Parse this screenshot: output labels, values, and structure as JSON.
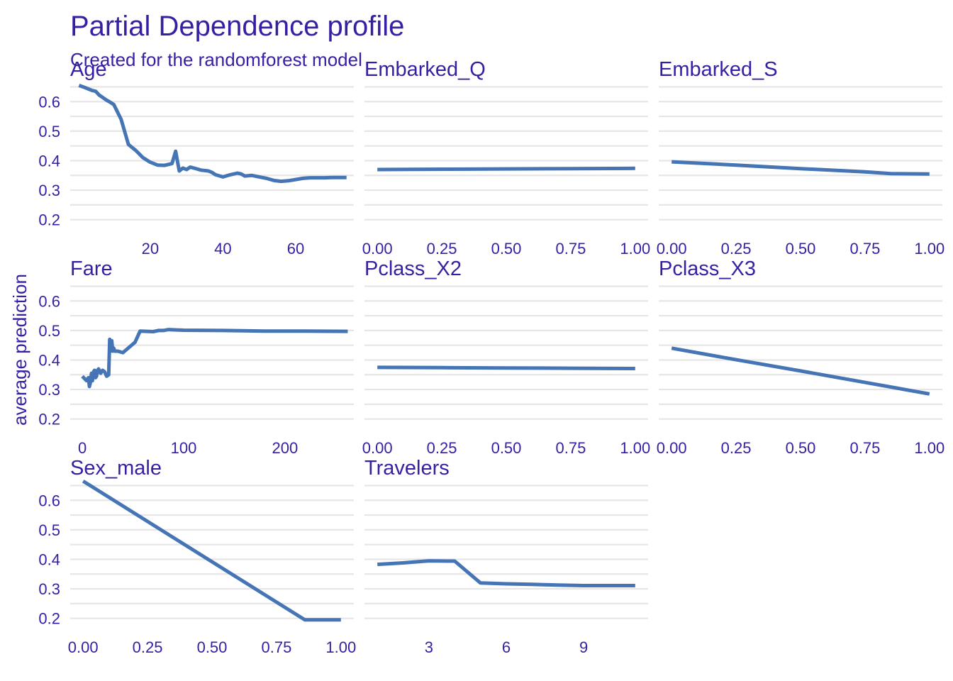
{
  "chart_data": {
    "type": "line",
    "title": "Partial Dependence profile",
    "subtitle": "Created for the randomforest model",
    "ylabel": "average prediction",
    "xlabel": "",
    "ylim": [
      0.18,
      0.68
    ],
    "y_ticks": [
      "0.2",
      "0.3",
      "0.4",
      "0.5",
      "0.6"
    ],
    "y_tick_values": [
      0.2,
      0.3,
      0.4,
      0.5,
      0.6
    ],
    "grid": true,
    "line_color": "#4575b4",
    "text_color": "#371ea3",
    "grid_color": "#e6e6e6",
    "panels": [
      {
        "name": "Age",
        "xlim": [
          -2,
          76
        ],
        "x_ticks": [
          "20",
          "40",
          "60"
        ],
        "x_tick_values": [
          20,
          40,
          60
        ],
        "x": [
          0.42,
          2,
          4,
          5,
          6,
          8,
          9,
          10,
          12,
          14,
          15,
          16,
          18,
          20,
          22,
          24,
          26,
          27,
          28,
          29,
          30,
          31,
          32,
          34,
          36,
          37,
          38,
          40,
          42,
          44,
          45,
          46,
          48,
          50,
          52,
          54,
          56,
          58,
          60,
          62,
          64,
          66,
          68,
          70,
          72,
          74
        ],
        "y": [
          0.655,
          0.648,
          0.638,
          0.635,
          0.622,
          0.605,
          0.598,
          0.59,
          0.54,
          0.455,
          0.445,
          0.435,
          0.41,
          0.395,
          0.385,
          0.384,
          0.39,
          0.432,
          0.365,
          0.375,
          0.37,
          0.378,
          0.375,
          0.368,
          0.365,
          0.36,
          0.352,
          0.345,
          0.352,
          0.358,
          0.355,
          0.348,
          0.35,
          0.345,
          0.34,
          0.333,
          0.33,
          0.332,
          0.336,
          0.34,
          0.342,
          0.342,
          0.342,
          0.343,
          0.343,
          0.343
        ]
      },
      {
        "name": "Embarked_Q",
        "xlim": [
          -0.05,
          1.05
        ],
        "x_ticks": [
          "0.00",
          "0.25",
          "0.50",
          "0.75",
          "1.00"
        ],
        "x_tick_values": [
          0,
          0.25,
          0.5,
          0.75,
          1
        ],
        "x": [
          0,
          0.25,
          0.5,
          0.75,
          1
        ],
        "y": [
          0.37,
          0.371,
          0.372,
          0.373,
          0.374
        ]
      },
      {
        "name": "Embarked_S",
        "xlim": [
          -0.05,
          1.05
        ],
        "x_ticks": [
          "0.00",
          "0.25",
          "0.50",
          "0.75",
          "1.00"
        ],
        "x_tick_values": [
          0,
          0.25,
          0.5,
          0.75,
          1
        ],
        "x": [
          0,
          0.25,
          0.5,
          0.75,
          0.85,
          1
        ],
        "y": [
          0.396,
          0.385,
          0.373,
          0.362,
          0.356,
          0.355
        ]
      },
      {
        "name": "Fare",
        "xlim": [
          -12,
          268
        ],
        "x_ticks": [
          "0",
          "100",
          "200"
        ],
        "x_tick_values": [
          0,
          100,
          200
        ],
        "x": [
          0,
          4,
          6,
          7,
          8,
          9,
          10,
          11,
          12,
          13,
          14,
          15,
          16,
          18,
          20,
          22,
          24,
          26,
          27,
          28,
          29,
          30,
          31,
          32,
          35,
          40,
          52,
          57,
          70,
          75,
          80,
          85,
          100,
          140,
          180,
          220,
          262
        ],
        "y": [
          0.345,
          0.33,
          0.34,
          0.31,
          0.325,
          0.355,
          0.33,
          0.36,
          0.365,
          0.34,
          0.345,
          0.365,
          0.37,
          0.355,
          0.365,
          0.36,
          0.345,
          0.35,
          0.47,
          0.43,
          0.465,
          0.43,
          0.44,
          0.43,
          0.43,
          0.425,
          0.46,
          0.498,
          0.496,
          0.5,
          0.5,
          0.503,
          0.501,
          0.5,
          0.498,
          0.498,
          0.497
        ]
      },
      {
        "name": "Pclass_X2",
        "xlim": [
          -0.05,
          1.05
        ],
        "x_ticks": [
          "0.00",
          "0.25",
          "0.50",
          "0.75",
          "1.00"
        ],
        "x_tick_values": [
          0,
          0.25,
          0.5,
          0.75,
          1
        ],
        "x": [
          0,
          0.25,
          0.5,
          0.75,
          1
        ],
        "y": [
          0.375,
          0.374,
          0.373,
          0.372,
          0.371
        ]
      },
      {
        "name": "Pclass_X3",
        "xlim": [
          -0.05,
          1.05
        ],
        "x_ticks": [
          "0.00",
          "0.25",
          "0.50",
          "0.75",
          "1.00"
        ],
        "x_tick_values": [
          0,
          0.25,
          0.5,
          0.75,
          1
        ],
        "x": [
          0,
          0.25,
          0.5,
          0.75,
          1
        ],
        "y": [
          0.44,
          0.401,
          0.363,
          0.324,
          0.285
        ]
      },
      {
        "name": "Sex_male",
        "xlim": [
          -0.05,
          1.05
        ],
        "x_ticks": [
          "0.00",
          "0.25",
          "0.50",
          "0.75",
          "1.00"
        ],
        "x_tick_values": [
          0,
          0.25,
          0.5,
          0.75,
          1
        ],
        "x": [
          0,
          0.86,
          1
        ],
        "y": [
          0.665,
          0.195,
          0.195
        ]
      },
      {
        "name": "Travelers",
        "xlim": [
          0.5,
          11.5
        ],
        "x_ticks": [
          "3",
          "6",
          "9"
        ],
        "x_tick_values": [
          3,
          6,
          9
        ],
        "x": [
          1,
          2,
          3,
          4,
          5,
          6,
          7,
          8,
          9,
          10,
          11
        ],
        "y": [
          0.383,
          0.388,
          0.395,
          0.394,
          0.32,
          0.317,
          0.315,
          0.313,
          0.311,
          0.311,
          0.311
        ]
      }
    ]
  }
}
